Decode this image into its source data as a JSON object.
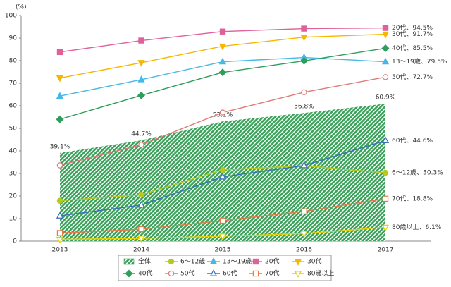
{
  "chart_data": {
    "type": "line",
    "y_label": "(%)",
    "categories": [
      "2013",
      "2014",
      "2015",
      "2016",
      "2017"
    ],
    "ylim": [
      0,
      100
    ],
    "yticks": [
      0,
      10,
      20,
      30,
      40,
      50,
      60,
      70,
      80,
      90,
      100
    ],
    "grid": false,
    "area": {
      "name": "全体",
      "color": "#3aa05a",
      "values": [
        39.1,
        44.7,
        53.1,
        56.8,
        60.9
      ],
      "value_labels": [
        "39.1%",
        "44.7%",
        "53.1%",
        "56.8%",
        "60.9%"
      ]
    },
    "series": [
      {
        "name": "6～12歳",
        "color": "#b8c81e",
        "marker": "circle",
        "filled": true,
        "values": [
          17.9,
          20.6,
          31.6,
          33.4,
          30.3
        ],
        "value_labels": [
          null,
          null,
          null,
          null,
          "6～12歳、30.3%"
        ]
      },
      {
        "name": "13～19歳",
        "color": "#45b8e6",
        "marker": "triangle-up",
        "filled": true,
        "values": [
          64.3,
          71.6,
          79.5,
          81.4,
          79.5
        ],
        "value_labels": [
          null,
          null,
          null,
          null,
          "13～19歳、79.5%"
        ]
      },
      {
        "name": "20代",
        "color": "#e0609a",
        "marker": "square",
        "filled": true,
        "values": [
          83.8,
          88.9,
          92.9,
          94.2,
          94.5
        ],
        "value_labels": [
          null,
          null,
          null,
          null,
          "20代、94.5%"
        ]
      },
      {
        "name": "30代",
        "color": "#f5b800",
        "marker": "triangle-down",
        "filled": true,
        "values": [
          72.3,
          79.1,
          86.4,
          90.4,
          91.7
        ],
        "value_labels": [
          null,
          null,
          null,
          null,
          "30代、91.7%"
        ]
      },
      {
        "name": "40代",
        "color": "#2e9e5a",
        "marker": "diamond",
        "filled": true,
        "values": [
          54.0,
          64.6,
          74.8,
          79.9,
          85.5
        ],
        "value_labels": [
          null,
          null,
          null,
          null,
          "40代、85.5%"
        ]
      },
      {
        "name": "50代",
        "color": "#e07a7a",
        "marker": "circle",
        "filled": false,
        "values": [
          33.6,
          42.7,
          57.0,
          66.0,
          72.7
        ],
        "value_labels": [
          null,
          null,
          null,
          null,
          "50代、72.7%"
        ]
      },
      {
        "name": "60代",
        "color": "#3a6ec0",
        "marker": "triangle-up",
        "filled": false,
        "values": [
          11.2,
          16.0,
          28.5,
          33.5,
          44.6
        ],
        "value_labels": [
          null,
          null,
          null,
          null,
          "60代、44.6%"
        ]
      },
      {
        "name": "70代",
        "color": "#e8784a",
        "marker": "square",
        "filled": false,
        "values": [
          3.6,
          5.3,
          9.1,
          13.2,
          18.8
        ],
        "value_labels": [
          null,
          null,
          null,
          null,
          "70代、18.8%"
        ]
      },
      {
        "name": "80歳以上",
        "color": "#e8d000",
        "marker": "triangle-down",
        "filled": false,
        "values": [
          0.8,
          1.2,
          2.2,
          3.4,
          6.1
        ],
        "value_labels": [
          null,
          null,
          null,
          null,
          "80歳以上、6.1%"
        ]
      }
    ]
  }
}
